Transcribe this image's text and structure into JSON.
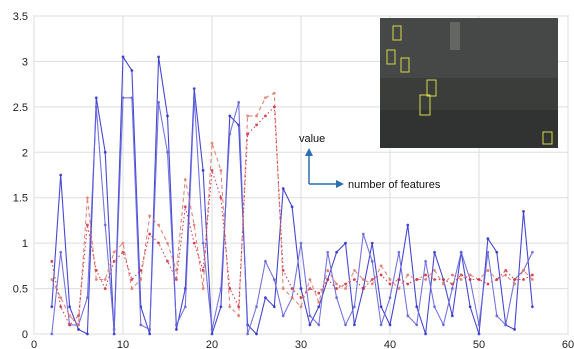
{
  "chart_data": {
    "type": "line",
    "title": "",
    "xlabel": "",
    "ylabel": "",
    "xlim": [
      0,
      60
    ],
    "ylim": [
      0,
      3.5
    ],
    "xticks": [
      0,
      10,
      20,
      30,
      40,
      50,
      60
    ],
    "yticks": [
      0,
      0.5,
      1,
      1.5,
      2,
      2.5,
      3,
      3.5
    ],
    "grid": true,
    "annotations": {
      "y_axis_label": "value",
      "x_axis_label": "number of features"
    },
    "inset": {
      "content": "grayscale video frame with yellow detection boxes",
      "placement": "top-right"
    },
    "series": [
      {
        "color": "#3333cc",
        "style": "solid",
        "x": [
          2,
          3,
          4,
          5,
          6,
          7,
          8,
          9,
          10,
          11,
          12,
          13,
          14,
          15,
          16,
          17,
          18,
          19,
          20,
          21,
          22,
          23,
          24,
          25,
          26,
          27,
          28,
          29,
          30,
          31,
          32,
          33,
          34,
          35,
          36,
          37,
          38,
          39,
          40,
          41,
          42,
          43,
          44,
          45,
          46,
          47,
          48,
          49,
          50,
          51,
          52,
          53,
          54,
          55,
          56
        ],
        "y": [
          0.3,
          1.75,
          0.3,
          0.05,
          0,
          2.6,
          2.0,
          0,
          3.05,
          2.9,
          0.3,
          0,
          3.05,
          2.4,
          0.05,
          0.5,
          2.7,
          1.8,
          0,
          0.3,
          2.4,
          2.3,
          0.1,
          0,
          0.4,
          0.3,
          1.6,
          1.4,
          0.5,
          0.1,
          0.3,
          0.6,
          0.9,
          1.0,
          0.1,
          0.5,
          1.0,
          0.3,
          0.1,
          0.6,
          1.2,
          0.3,
          0,
          0.9,
          0.6,
          0.2,
          0.9,
          0.3,
          0,
          1.05,
          0.9,
          0.1,
          0.05,
          1.35,
          0.3
        ]
      },
      {
        "color": "#6666dd",
        "style": "solid",
        "x": [
          2,
          3,
          4,
          5,
          6,
          7,
          8,
          9,
          10,
          11,
          12,
          13,
          14,
          15,
          16,
          17,
          18,
          19,
          20,
          21,
          22,
          23,
          24,
          25,
          26,
          27,
          28,
          29,
          30,
          31,
          32,
          33,
          34,
          35,
          36,
          37,
          38,
          39,
          40,
          41,
          42,
          43,
          44,
          45,
          46,
          47,
          48,
          49,
          50,
          51,
          52,
          53,
          54,
          55,
          56
        ],
        "y": [
          0,
          0.9,
          0.1,
          0.1,
          0.4,
          2.5,
          1.2,
          0.05,
          2.6,
          2.6,
          0.1,
          0.05,
          2.55,
          2.0,
          0.1,
          0.3,
          2.6,
          1.0,
          0.05,
          0.5,
          2.2,
          2.55,
          0,
          0.3,
          0.8,
          0.6,
          0.2,
          0.4,
          1.0,
          0.2,
          0.1,
          0.9,
          0.4,
          0.1,
          0.3,
          1.1,
          0.8,
          0.1,
          0.4,
          0.9,
          0.2,
          0.1,
          0.8,
          0.3,
          0.1,
          0.5,
          0.9,
          0.6,
          0.1,
          0.9,
          0.2,
          0.1,
          0.6,
          0.7,
          0.9
        ]
      },
      {
        "color": "#e07a6a",
        "style": "dashed",
        "x": [
          2,
          3,
          4,
          5,
          6,
          7,
          8,
          9,
          10,
          11,
          12,
          13,
          14,
          15,
          16,
          17,
          18,
          19,
          20,
          21,
          22,
          23,
          24,
          25,
          26,
          27,
          28,
          29,
          30,
          31,
          32,
          33,
          34,
          35,
          36,
          37,
          38,
          39,
          40,
          41,
          42,
          43,
          44,
          45,
          46,
          47,
          48,
          49,
          50,
          51,
          52,
          53,
          54,
          55,
          56
        ],
        "y": [
          0.6,
          0.4,
          0.2,
          0.1,
          1.5,
          0.6,
          0.6,
          0.9,
          1.0,
          0.5,
          0.6,
          1.3,
          1.2,
          1.0,
          0.7,
          1.7,
          1.2,
          0.5,
          2.1,
          1.8,
          0.3,
          0.2,
          2.4,
          2.4,
          2.6,
          2.65,
          0.5,
          0.4,
          0.3,
          0.6,
          0.35,
          0.7,
          0.55,
          0.5,
          0.7,
          0.6,
          0.55,
          0.75,
          0.6,
          0.5,
          0.65,
          0.6,
          0.6,
          0.7,
          0.55,
          0.65,
          0.6,
          0.65,
          0.6,
          0.7,
          0.6,
          0.65,
          0.55,
          0.7,
          0.6
        ]
      },
      {
        "color": "#cc3344",
        "style": "dotted",
        "x": [
          2,
          3,
          4,
          5,
          6,
          7,
          8,
          9,
          10,
          11,
          12,
          13,
          14,
          15,
          16,
          17,
          18,
          19,
          20,
          21,
          22,
          23,
          24,
          25,
          26,
          27,
          28,
          29,
          30,
          31,
          32,
          33,
          34,
          35,
          36,
          37,
          38,
          39,
          40,
          41,
          42,
          43,
          44,
          45,
          46,
          47,
          48,
          49,
          50,
          51,
          52,
          53,
          54,
          55,
          56
        ],
        "y": [
          0.8,
          0.3,
          0.1,
          0.2,
          1.2,
          0.7,
          0.5,
          0.8,
          0.9,
          0.6,
          0.7,
          1.1,
          1.0,
          0.8,
          0.6,
          1.4,
          1.0,
          0.7,
          1.8,
          1.5,
          0.5,
          0.3,
          2.2,
          2.3,
          2.4,
          2.5,
          0.7,
          0.5,
          0.4,
          0.5,
          0.45,
          0.6,
          0.5,
          0.55,
          0.6,
          0.5,
          0.6,
          0.65,
          0.55,
          0.6,
          0.55,
          0.6,
          0.65,
          0.6,
          0.6,
          0.55,
          0.65,
          0.6,
          0.6,
          0.55,
          0.6,
          0.7,
          0.6,
          0.6,
          0.65
        ]
      }
    ]
  }
}
